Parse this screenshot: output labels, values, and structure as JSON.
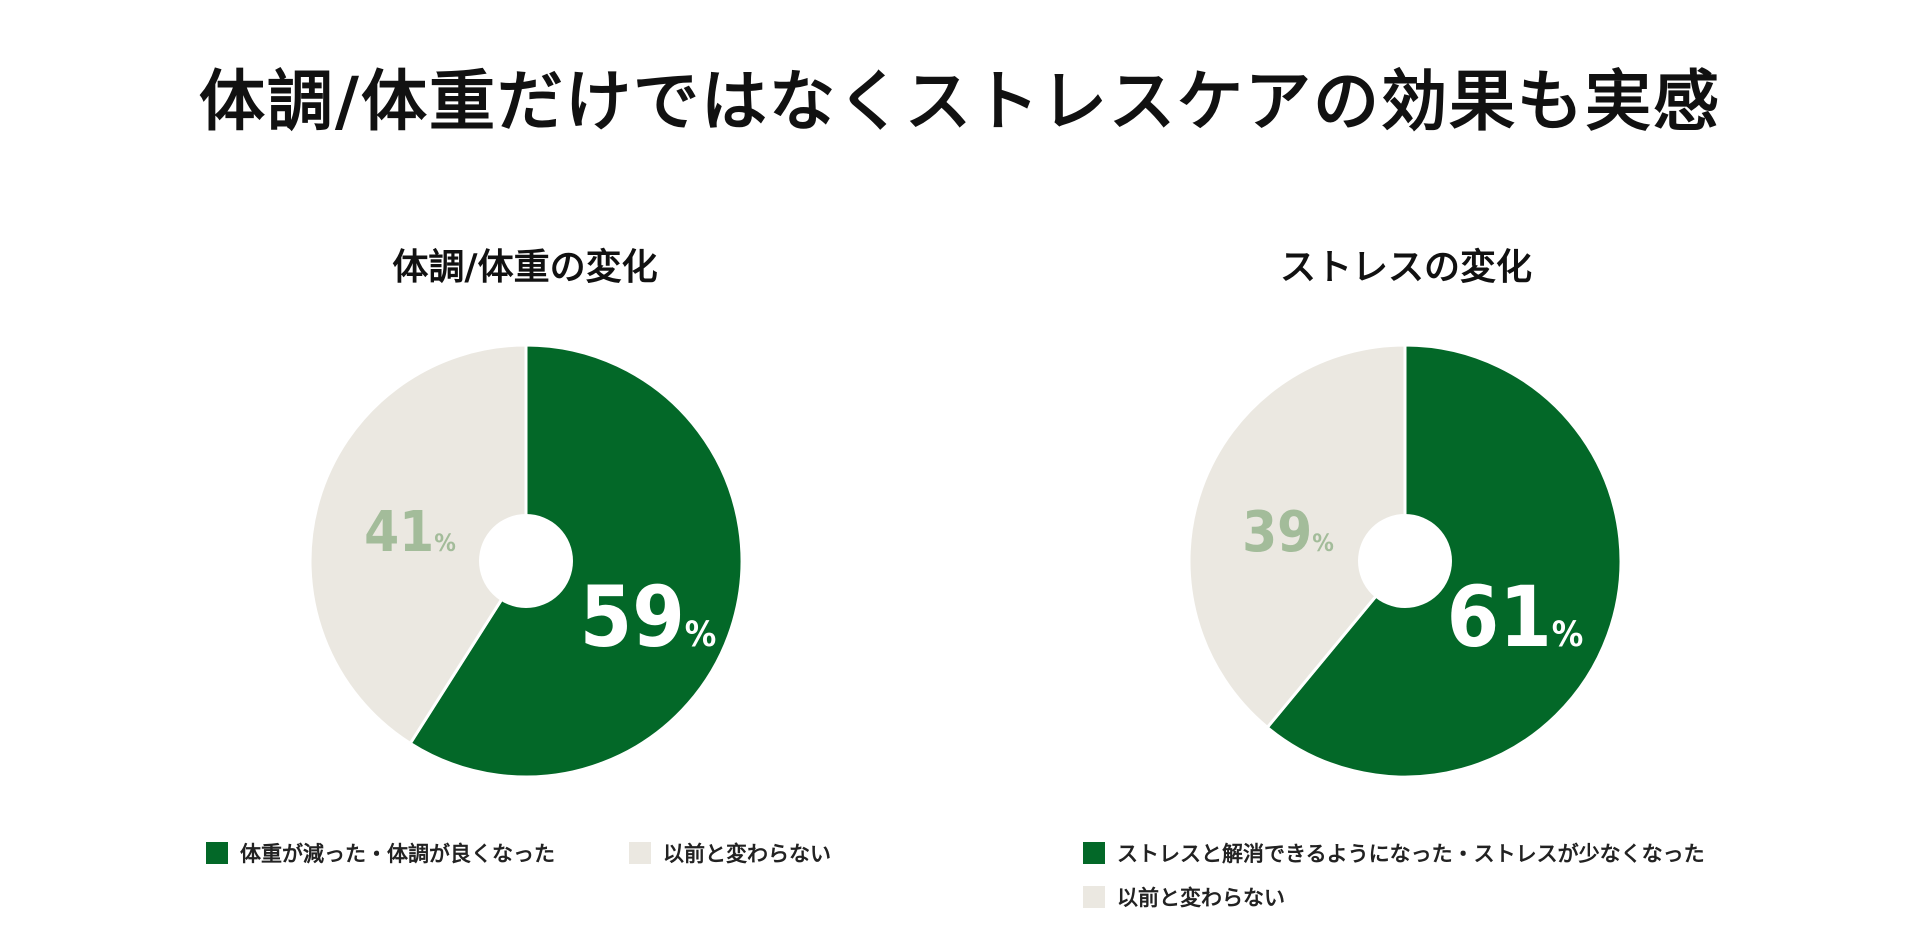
{
  "main_title": "体調/体重だけではなくストレスケアの効果も実感",
  "colors": {
    "green": "#036828",
    "beige": "#ebe8e1",
    "light_text": "#a3bc9a",
    "white": "#ffffff"
  },
  "chart_data": [
    {
      "type": "pie",
      "title": "体調/体重の変化",
      "slices": [
        {
          "label": "体重が減った・体調が良くなった",
          "value": 59,
          "display": "59",
          "unit": "%",
          "color": "#036828"
        },
        {
          "label": "以前と変わらない",
          "value": 41,
          "display": "41",
          "unit": "%",
          "color": "#ebe8e1"
        }
      ],
      "legend": "bottom"
    },
    {
      "type": "pie",
      "title": "ストレスの変化",
      "slices": [
        {
          "label": "ストレスと解消できるようになった・ストレスが少なくなった",
          "value": 61,
          "display": "61",
          "unit": "%",
          "color": "#036828"
        },
        {
          "label": "以前と変わらない",
          "value": 39,
          "display": "39",
          "unit": "%",
          "color": "#ebe8e1"
        }
      ],
      "legend": "bottom"
    }
  ]
}
